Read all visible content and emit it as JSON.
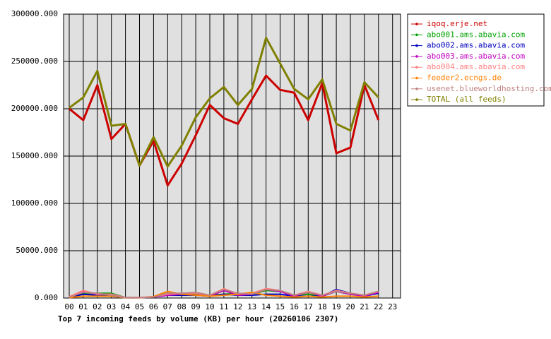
{
  "chart_data": {
    "type": "line",
    "title": "Top 7 incoming feeds by volume (KB) per hour (20260106 2307)",
    "categories": [
      "00",
      "01",
      "02",
      "03",
      "04",
      "05",
      "06",
      "07",
      "08",
      "09",
      "10",
      "11",
      "12",
      "13",
      "14",
      "15",
      "16",
      "17",
      "18",
      "19",
      "20",
      "21",
      "22",
      "23"
    ],
    "series": [
      {
        "name": "iqoq.erje.net",
        "color": "#cc0000",
        "values": [
          200000,
          188000,
          225000,
          168000,
          184000,
          140000,
          166000,
          119000,
          142000,
          172000,
          204000,
          190000,
          184000,
          210000,
          235000,
          220000,
          217000,
          188000,
          227000,
          153000,
          159000,
          225000,
          188000,
          null
        ]
      },
      {
        "name": "abo001.ams.abavia.com",
        "color": "#00a000",
        "values": [
          1000,
          5000,
          5000,
          5000,
          500,
          500,
          1000,
          5000,
          4000,
          4000,
          3000,
          4000,
          5000,
          4000,
          8000,
          7000,
          3000,
          4000,
          2000,
          7000,
          4000,
          2000,
          6000,
          null
        ]
      },
      {
        "name": "abo002.ams.abavia.com",
        "color": "#0000c0",
        "values": [
          500,
          4000,
          3000,
          2000,
          300,
          300,
          1000,
          3000,
          3000,
          3000,
          2000,
          4000,
          3000,
          3000,
          4000,
          4000,
          2000,
          2000,
          2000,
          9000,
          5000,
          2000,
          5000,
          null
        ]
      },
      {
        "name": "abo003.ams.abavia.com",
        "color": "#c000c0",
        "values": [
          1000,
          7000,
          4000,
          4000,
          500,
          500,
          1000,
          3000,
          4000,
          5000,
          2000,
          8000,
          3000,
          4000,
          9000,
          7000,
          2000,
          6000,
          2000,
          7000,
          4000,
          2000,
          6000,
          null
        ]
      },
      {
        "name": "abo004.ams.abavia.com",
        "color": "#ff8080",
        "values": [
          1500,
          8000,
          4000,
          4000,
          500,
          500,
          1500,
          4000,
          5000,
          5000,
          3000,
          10000,
          4000,
          5000,
          10000,
          8000,
          3000,
          7000,
          3000,
          8000,
          5000,
          3000,
          7000,
          null
        ]
      },
      {
        "name": "feeder2.ecngs.de",
        "color": "#ff8000",
        "values": [
          500,
          2000,
          2000,
          2000,
          300,
          300,
          1500,
          7000,
          4000,
          3000,
          2000,
          3000,
          4000,
          6000,
          3000,
          2000,
          1000,
          2000,
          1000,
          2000,
          2000,
          1000,
          2000,
          null
        ]
      },
      {
        "name": "usenet.blueworldhosting.com",
        "color": "#c08080",
        "values": [
          1000,
          6000,
          5000,
          3000,
          500,
          500,
          1000,
          5000,
          5000,
          6000,
          3000,
          9000,
          5000,
          4000,
          9000,
          8000,
          3000,
          6000,
          3000,
          7000,
          5000,
          3000,
          7000,
          null
        ]
      },
      {
        "name": "TOTAL (all feeds)",
        "color": "#808000",
        "values": [
          201000,
          212000,
          240000,
          182000,
          184000,
          140000,
          170000,
          139000,
          161000,
          191000,
          211000,
          223000,
          204000,
          221000,
          275000,
          248000,
          221000,
          210000,
          231000,
          184000,
          177000,
          228000,
          212000,
          null
        ]
      }
    ],
    "ylim": [
      0,
      300000
    ],
    "yticks": [
      {
        "value": 0,
        "label": "0.000"
      },
      {
        "value": 50000,
        "label": "50000.000"
      },
      {
        "value": 100000,
        "label": "100000.000"
      },
      {
        "value": 150000,
        "label": "150000.000"
      },
      {
        "value": 200000,
        "label": "200000.000"
      },
      {
        "value": 250000,
        "label": "250000.000"
      },
      {
        "value": 300000,
        "label": "300000.000"
      }
    ],
    "grid": true
  }
}
